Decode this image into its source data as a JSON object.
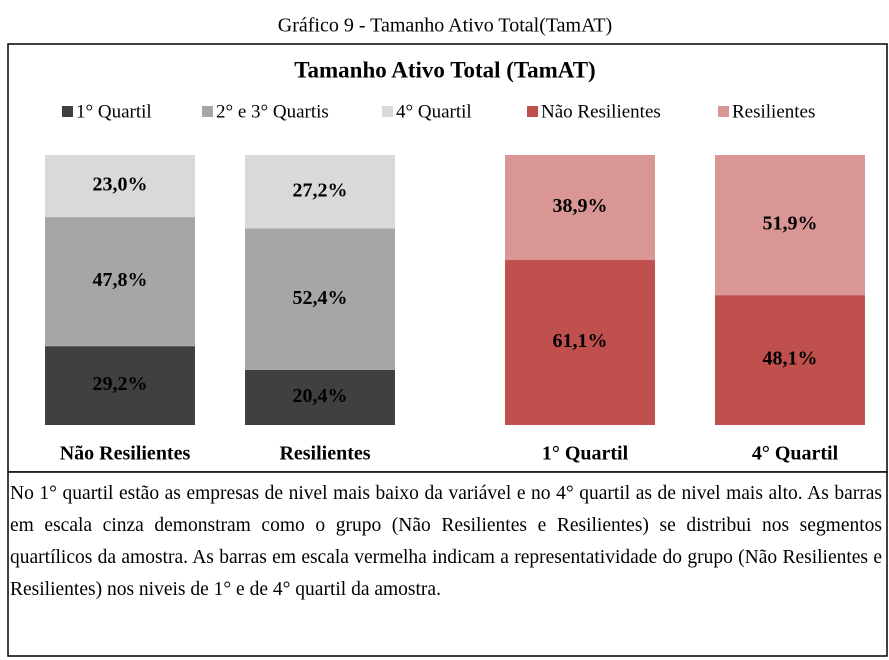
{
  "caption": "Gráfico 9 - Tamanho Ativo Total(TamAT)",
  "chart_data": {
    "type": "bar",
    "stacked": true,
    "title": "Tamanho Ativo Total (TamAT)",
    "categories": [
      "Não Resilientes",
      "Resilientes",
      "1° Quartil",
      "4° Quartil"
    ],
    "ylim": [
      0,
      100
    ],
    "series": [
      {
        "name": "1° Quartil",
        "color": "#404040",
        "values": [
          29.2,
          20.4,
          null,
          null
        ],
        "value_labels": [
          "29,2%",
          "20,4%",
          null,
          null
        ]
      },
      {
        "name": "2° e 3° Quartis",
        "color": "#a6a6a6",
        "values": [
          47.8,
          52.4,
          null,
          null
        ],
        "value_labels": [
          "47,8%",
          "52,4%",
          null,
          null
        ]
      },
      {
        "name": "4° Quartil",
        "color": "#d9d9d9",
        "values": [
          23.0,
          27.2,
          null,
          null
        ],
        "value_labels": [
          "23,0%",
          "27,2%",
          null,
          null
        ]
      },
      {
        "name": "Não Resilientes",
        "color": "#c0504d",
        "values": [
          null,
          null,
          61.1,
          48.1
        ],
        "value_labels": [
          null,
          null,
          "61,1%",
          "48,1%"
        ]
      },
      {
        "name": "Resilientes",
        "color": "#d99694",
        "values": [
          null,
          null,
          38.9,
          51.9
        ],
        "value_labels": [
          null,
          null,
          "38,9%",
          "51,9%"
        ]
      }
    ]
  },
  "note": "No 1° quartil estão as empresas de nivel mais baixo da variável e no 4° quartil as de nivel mais alto. As barras em escala cinza demonstram como o grupo (Não Resilientes e Resilientes) se distribui nos segmentos quartílicos da amostra. As barras em escala vermelha indicam a representatividade do grupo (Não Resilientes e Resilientes) nos niveis de 1° e de 4° quartil da amostra."
}
